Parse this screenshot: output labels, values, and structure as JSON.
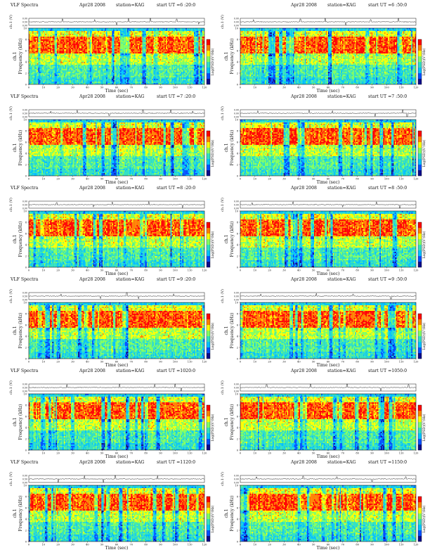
{
  "figure_title": "",
  "chart_data": [
    {
      "type": "heatmap",
      "title": "VLF Spectra",
      "date": "Apr28 2008",
      "station": "station=KAG",
      "start_ut": "start UT =6 :20:0",
      "panel_label": "ch.1",
      "timeseries_ylabel": "ch.1 (V)",
      "timeseries_yticks": [
        "0.00",
        "0.50",
        "0.00"
      ],
      "ylabel": "Frequency (kHz)",
      "xlabel": "Time (sec)",
      "xlim": [
        0,
        120
      ],
      "ylim": [
        0,
        10
      ],
      "x_ticks": [
        0,
        10,
        20,
        30,
        40,
        50,
        60,
        70,
        80,
        90,
        100,
        110,
        120
      ],
      "y_ticks": [
        0,
        2,
        4,
        6,
        8,
        10
      ],
      "colorbar_label": "Log(PSD)(V²/Hz)",
      "seed": 11,
      "timeseries_spikes": [
        {
          "t": 23,
          "v": 0.04
        },
        {
          "t": 45,
          "v": 0.03
        },
        {
          "t": 60,
          "v": -0.04
        },
        {
          "t": 68,
          "v": 0.05
        },
        {
          "t": 83,
          "v": 0.06
        },
        {
          "t": 101,
          "v": 0.04
        },
        {
          "t": 116,
          "v": -0.03
        }
      ]
    },
    {
      "type": "heatmap",
      "title": "",
      "date": "Apr28 2008",
      "station": "station=KAG",
      "start_ut": "start UT =6 :50:0",
      "panel_label": "ch.1",
      "timeseries_ylabel": "ch.1 (V)",
      "timeseries_yticks": [
        "0.00",
        "0.00",
        "0.00"
      ],
      "ylabel": "Frequency (kHz)",
      "xlabel": "Time (sec)",
      "xlim": [
        0,
        120
      ],
      "ylim": [
        0,
        10
      ],
      "x_ticks": [
        0,
        10,
        20,
        30,
        40,
        50,
        60,
        70,
        80,
        90,
        100,
        110,
        120
      ],
      "y_ticks": [
        0,
        2,
        4,
        6,
        8,
        10
      ],
      "colorbar_label": "Log(PSD)(V²/Hz)",
      "seed": 23,
      "timeseries_spikes": [
        {
          "t": 9,
          "v": 0.03
        },
        {
          "t": 41,
          "v": 0.04
        },
        {
          "t": 58,
          "v": 0.05
        },
        {
          "t": 72,
          "v": -0.04
        },
        {
          "t": 89,
          "v": 0.03
        },
        {
          "t": 108,
          "v": 0.05
        }
      ]
    },
    {
      "type": "heatmap",
      "title": "VLF Spectra",
      "date": "Apr28 2008",
      "station": "station=KAG",
      "start_ut": "start UT =7 :20:0",
      "panel_label": "ch.1",
      "timeseries_ylabel": "ch.1 (V)",
      "timeseries_yticks": [
        "0.00",
        "0.50",
        "0.00"
      ],
      "ylabel": "Frequency (kHz)",
      "xlabel": "Time (sec)",
      "xlim": [
        0,
        120
      ],
      "ylim": [
        0,
        10
      ],
      "x_ticks": [
        0,
        10,
        20,
        30,
        40,
        50,
        60,
        70,
        80,
        90,
        100,
        110,
        120
      ],
      "y_ticks": [
        0,
        2,
        4,
        6,
        8,
        10
      ],
      "colorbar_label": "Log(PSD)(V²/Hz)",
      "seed": 37,
      "timeseries_spikes": [
        {
          "t": 15,
          "v": 0.03
        },
        {
          "t": 33,
          "v": 0.04
        },
        {
          "t": 55,
          "v": -0.03
        },
        {
          "t": 78,
          "v": 0.05
        },
        {
          "t": 97,
          "v": 0.04
        },
        {
          "t": 112,
          "v": 0.03
        }
      ]
    },
    {
      "type": "heatmap",
      "title": "",
      "date": "Apr28 2008",
      "station": "station=KAG",
      "start_ut": "start UT =7 :50:0",
      "panel_label": "ch.1",
      "timeseries_ylabel": "ch.1 (V)",
      "timeseries_yticks": [
        "0.00",
        "0.00",
        "0.00"
      ],
      "ylabel": "Frequency (kHz)",
      "xlabel": "Time (sec)",
      "xlim": [
        0,
        120
      ],
      "ylim": [
        0,
        10
      ],
      "x_ticks": [
        0,
        10,
        20,
        30,
        40,
        50,
        60,
        70,
        80,
        90,
        100,
        110,
        120
      ],
      "y_ticks": [
        0,
        2,
        4,
        6,
        8,
        10
      ],
      "colorbar_label": "Log(PSD)(V²/Hz)",
      "seed": 41,
      "timeseries_spikes": [
        {
          "t": 12,
          "v": 0.03
        },
        {
          "t": 47,
          "v": 0.04
        },
        {
          "t": 63,
          "v": 0.03
        },
        {
          "t": 92,
          "v": -0.04
        },
        {
          "t": 111,
          "v": 0.07
        },
        {
          "t": 114,
          "v": -0.05
        }
      ]
    },
    {
      "type": "heatmap",
      "title": "VLF Spectra",
      "date": "Apr28 2008",
      "station": "station=KAG",
      "start_ut": "start UT =8 :20:0",
      "panel_label": "ch.1",
      "timeseries_ylabel": "ch.1 (V)",
      "timeseries_yticks": [
        "0.00",
        "0.50",
        "0.00"
      ],
      "ylabel": "Frequency (kHz)",
      "xlabel": "Time (sec)",
      "xlim": [
        0,
        120
      ],
      "ylim": [
        0,
        10
      ],
      "x_ticks": [
        0,
        10,
        20,
        30,
        40,
        50,
        60,
        70,
        80,
        90,
        100,
        110,
        120
      ],
      "y_ticks": [
        0,
        2,
        4,
        6,
        8,
        10
      ],
      "colorbar_label": "Log(PSD)(V²/Hz)",
      "seed": 53,
      "timeseries_spikes": [
        {
          "t": 19,
          "v": 0.03
        },
        {
          "t": 44,
          "v": -0.03
        },
        {
          "t": 57,
          "v": 0.04
        },
        {
          "t": 82,
          "v": 0.04
        },
        {
          "t": 105,
          "v": -0.04
        }
      ]
    },
    {
      "type": "heatmap",
      "title": "",
      "date": "Apr28 2008",
      "station": "station=KAG",
      "start_ut": "start UT =8 :50:0",
      "panel_label": "ch.1",
      "timeseries_ylabel": "ch.1 (V)",
      "timeseries_yticks": [
        "0.00",
        "0.00",
        "0.00"
      ],
      "ylabel": "Frequency (kHz)",
      "xlabel": "Time (sec)",
      "xlim": [
        0,
        120
      ],
      "ylim": [
        0,
        10
      ],
      "x_ticks": [
        0,
        10,
        20,
        30,
        40,
        50,
        60,
        70,
        80,
        90,
        100,
        110,
        120
      ],
      "y_ticks": [
        0,
        2,
        4,
        6,
        8,
        10
      ],
      "colorbar_label": "Log(PSD)(V²/Hz)",
      "seed": 61,
      "timeseries_spikes": [
        {
          "t": 8,
          "v": 0.03
        },
        {
          "t": 36,
          "v": 0.04
        },
        {
          "t": 70,
          "v": -0.03
        },
        {
          "t": 93,
          "v": 0.04
        },
        {
          "t": 109,
          "v": -0.05
        }
      ]
    },
    {
      "type": "heatmap",
      "title": "VLF Spectra",
      "date": "Apr28 2008",
      "station": "station=KAG",
      "start_ut": "start UT =9 :20:0",
      "panel_label": "ch.1",
      "timeseries_ylabel": "ch.1 (V)",
      "timeseries_yticks": [
        "0.00",
        "0.50",
        "0.00"
      ],
      "ylabel": "Frequency (kHz)",
      "xlabel": "Time (sec)",
      "xlim": [
        0,
        120
      ],
      "ylim": [
        0,
        10
      ],
      "x_ticks": [
        0,
        10,
        20,
        30,
        40,
        50,
        60,
        70,
        80,
        90,
        100,
        110,
        120
      ],
      "y_ticks": [
        0,
        2,
        4,
        6,
        8,
        10
      ],
      "colorbar_label": "Log(PSD)(V²/Hz)",
      "seed": 71,
      "timeseries_spikes": [
        {
          "t": 22,
          "v": 0.03
        },
        {
          "t": 49,
          "v": -0.03
        },
        {
          "t": 67,
          "v": 0.05
        },
        {
          "t": 75,
          "v": -0.04
        },
        {
          "t": 99,
          "v": 0.03
        }
      ]
    },
    {
      "type": "heatmap",
      "title": "",
      "date": "Apr28 2008",
      "station": "station=KAG",
      "start_ut": "start UT =9 :50:0",
      "panel_label": "ch.1",
      "timeseries_ylabel": "ch.1 (V)",
      "timeseries_yticks": [
        "0.00",
        "0.00",
        "0.00"
      ],
      "ylabel": "Frequency (kHz)",
      "xlabel": "Time (sec)",
      "xlim": [
        0,
        120
      ],
      "ylim": [
        0,
        10
      ],
      "x_ticks": [
        0,
        10,
        20,
        30,
        40,
        50,
        60,
        70,
        80,
        90,
        100,
        110,
        120
      ],
      "y_ticks": [
        0,
        2,
        4,
        6,
        8,
        10
      ],
      "colorbar_label": "Log(PSD)(V²/Hz)",
      "seed": 83,
      "timeseries_spikes": [
        {
          "t": 14,
          "v": 0.03
        },
        {
          "t": 52,
          "v": 0.04
        },
        {
          "t": 77,
          "v": 0.03
        },
        {
          "t": 103,
          "v": -0.04
        }
      ]
    },
    {
      "type": "heatmap",
      "title": "VLF Spectra",
      "date": "Apr28 2008",
      "station": "station=KAG",
      "start_ut": "start UT =1020:0",
      "panel_label": "ch.1",
      "timeseries_ylabel": "ch.1 (V)",
      "timeseries_yticks": [
        "0.00",
        "0.50",
        "0.00"
      ],
      "ylabel": "Frequency (kHz)",
      "xlabel": "Time (sec)",
      "xlim": [
        0,
        120
      ],
      "ylim": [
        0,
        10
      ],
      "x_ticks": [
        0,
        10,
        20,
        30,
        40,
        50,
        60,
        70,
        80,
        90,
        100,
        110,
        120
      ],
      "y_ticks": [
        0,
        2,
        4,
        6,
        8,
        10
      ],
      "colorbar_label": "Log(PSD)(V²/Hz)",
      "seed": 97,
      "timeseries_spikes": [
        {
          "t": 26,
          "v": 0.04
        },
        {
          "t": 62,
          "v": 0.05
        },
        {
          "t": 86,
          "v": 0.04
        },
        {
          "t": 100,
          "v": 0.08
        },
        {
          "t": 104,
          "v": -0.06
        }
      ]
    },
    {
      "type": "heatmap",
      "title": "",
      "date": "Apr28 2008",
      "station": "station=KAG",
      "start_ut": "start UT =1050:0",
      "panel_label": "ch.1",
      "timeseries_ylabel": "ch.1 (V)",
      "timeseries_yticks": [
        "0.00",
        "0.00",
        "0.00"
      ],
      "ylabel": "Frequency (kHz)",
      "xlabel": "Time (sec)",
      "xlim": [
        0,
        120
      ],
      "ylim": [
        0,
        10
      ],
      "x_ticks": [
        0,
        10,
        20,
        30,
        40,
        50,
        60,
        70,
        80,
        90,
        100,
        110,
        120
      ],
      "y_ticks": [
        0,
        2,
        4,
        6,
        8,
        10
      ],
      "colorbar_label": "Log(PSD)(V²/Hz)",
      "seed": 109,
      "timeseries_spikes": [
        {
          "t": 18,
          "v": 0.04
        },
        {
          "t": 48,
          "v": 0.05
        },
        {
          "t": 73,
          "v": 0.07
        },
        {
          "t": 96,
          "v": -0.04
        },
        {
          "t": 115,
          "v": 0.04
        }
      ]
    },
    {
      "type": "heatmap",
      "title": "VLF Spectra",
      "date": "Apr28 2008",
      "station": "station=KAG",
      "start_ut": "start UT =1120:0",
      "panel_label": "ch.1",
      "timeseries_ylabel": "ch.1 (V)",
      "timeseries_yticks": [
        "0.00",
        "0.50",
        "0.00"
      ],
      "ylabel": "Frequency (kHz)",
      "xlabel": "Time (sec)",
      "xlim": [
        0,
        120
      ],
      "ylim": [
        0,
        10
      ],
      "x_ticks": [
        0,
        10,
        20,
        30,
        40,
        50,
        60,
        70,
        80,
        90,
        100,
        110,
        120
      ],
      "y_ticks": [
        0,
        2,
        4,
        6,
        8,
        10
      ],
      "colorbar_label": "Log(PSD)(V²/Hz)",
      "seed": 113,
      "timeseries_spikes": [
        {
          "t": 20,
          "v": -0.06
        },
        {
          "t": 38,
          "v": 0.04
        },
        {
          "t": 51,
          "v": -0.05
        },
        {
          "t": 59,
          "v": 0.06
        },
        {
          "t": 88,
          "v": 0.04
        }
      ]
    },
    {
      "type": "heatmap",
      "title": "",
      "date": "Apr28 2008",
      "station": "station=KAG",
      "start_ut": "start UT =1150:0",
      "panel_label": "ch.1",
      "timeseries_ylabel": "ch.1 (V)",
      "timeseries_yticks": [
        "0.00",
        "0.00",
        "0.00"
      ],
      "ylabel": "Frequency (kHz)",
      "xlabel": "Time (sec)",
      "xlim": [
        0,
        120
      ],
      "ylim": [
        0,
        10
      ],
      "x_ticks": [
        0,
        10,
        20,
        30,
        40,
        50,
        60,
        70,
        80,
        90,
        100,
        110,
        120
      ],
      "y_ticks": [
        0,
        2,
        4,
        6,
        8,
        10
      ],
      "colorbar_label": "Log(PSD)(V²/Hz)",
      "seed": 127,
      "timeseries_spikes": [
        {
          "t": 11,
          "v": 0.03
        },
        {
          "t": 43,
          "v": 0.04
        },
        {
          "t": 66,
          "v": 0.03
        },
        {
          "t": 90,
          "v": -0.04
        },
        {
          "t": 113,
          "v": 0.03
        }
      ]
    }
  ],
  "colorscale": {
    "stops": [
      "#0a0a8a",
      "#0050ff",
      "#00c0ff",
      "#30e0c0",
      "#80ff60",
      "#ffff00",
      "#ff8000",
      "#ff0000"
    ]
  },
  "colors": {
    "axis": "#111111",
    "timeseries": "#222222",
    "background": "#ffffff"
  }
}
